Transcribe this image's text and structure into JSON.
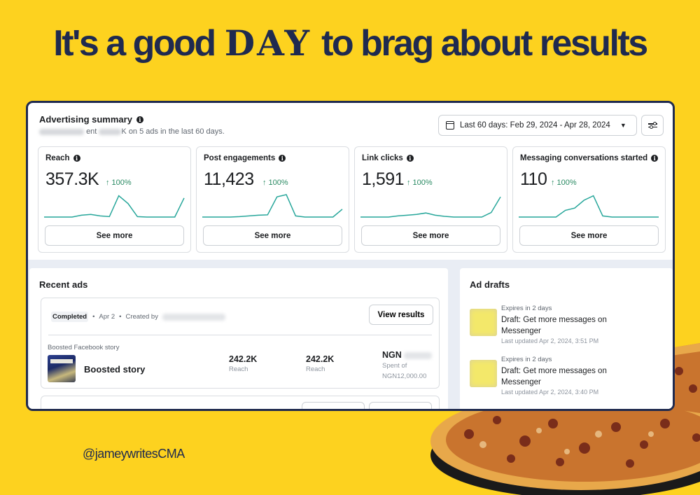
{
  "headline": {
    "before": "It's a good",
    "emphasis": "DAY",
    "after": "to brag about results"
  },
  "handle": "@jameywritesCMA",
  "summary": {
    "title": "Advertising summary",
    "subtitle_prefix": "ent ",
    "subtitle_suffix": "K on 5 ads in the last 60 days.",
    "date_range": "Last 60 days: Feb 29, 2024 - Apr 28, 2024"
  },
  "metrics": [
    {
      "label": "Reach",
      "value": "357.3K",
      "delta": "↑ 100%",
      "button": "See more"
    },
    {
      "label": "Post engagements",
      "value": "11,423",
      "delta": "↑ 100%",
      "button": "See more"
    },
    {
      "label": "Link clicks",
      "value": "1,591",
      "delta": "↑ 100%",
      "button": "See more"
    },
    {
      "label": "Messaging conversations started",
      "value": "110",
      "delta": "↑ 100%",
      "button": "See more"
    }
  ],
  "sparklines": [
    [
      0,
      0,
      0,
      0,
      0.08,
      0.12,
      0.05,
      0.02,
      0.95,
      0.6,
      0.02,
      0.0,
      0,
      0,
      0,
      0.85
    ],
    [
      0,
      0,
      0,
      0,
      0.02,
      0.05,
      0.08,
      0.1,
      0.9,
      1.0,
      0.05,
      0,
      0,
      0,
      0,
      0.35
    ],
    [
      0,
      0,
      0,
      0,
      0.05,
      0.08,
      0.12,
      0.18,
      0.08,
      0.03,
      0,
      0,
      0,
      0,
      0.2,
      0.9
    ],
    [
      0,
      0,
      0,
      0,
      0,
      0.3,
      0.4,
      0.75,
      0.95,
      0.05,
      0,
      0,
      0,
      0,
      0,
      0
    ]
  ],
  "recent": {
    "title": "Recent ads",
    "status": "Completed",
    "date": "Apr 2",
    "created_by": "Created by",
    "view_results": "View results",
    "ad_type": "Boosted Facebook story",
    "ad_name": "Boosted story",
    "stats": [
      {
        "value": "242.2K",
        "label": "Reach"
      },
      {
        "value": "242.2K",
        "label": "Reach"
      }
    ],
    "spend_value": "NGN",
    "spend_label_1": "Spent of",
    "spend_label_2": "NGN12,000.00"
  },
  "drafts": {
    "title": "Ad drafts",
    "items": [
      {
        "expires": "Expires in 2 days",
        "title": "Draft: Get more messages on Messenger",
        "updated": "Last updated Apr 2, 2024, 3:51 PM"
      },
      {
        "expires": "Expires in 2 days",
        "title": "Draft: Get more messages on Messenger",
        "updated": "Last updated Apr 2, 2024, 3:40 PM"
      }
    ]
  },
  "colors": {
    "background": "#fdd21f",
    "navy": "#1f2a4f",
    "positive": "#2a8a63",
    "sparkline": "#26a69a"
  }
}
